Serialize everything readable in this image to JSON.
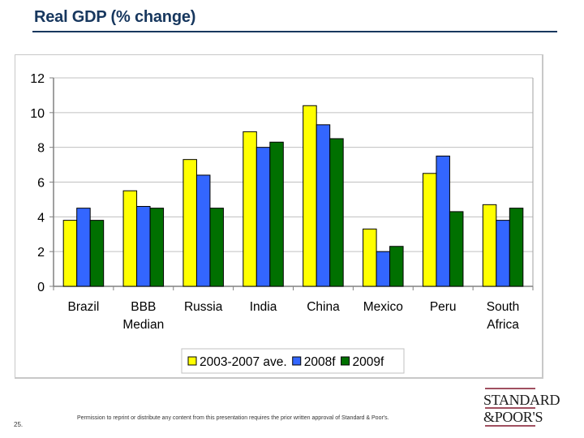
{
  "slide": {
    "title": "Real GDP (% change)",
    "page_number": "25.",
    "footer_text": "Permission to reprint or distribute any content from this presentation requires the prior written approval of Standard & Poor's.",
    "logo_line1": "STANDARD",
    "logo_line2": "&POOR'S"
  },
  "chart_data": {
    "type": "bar",
    "title": "Real GDP (% change)",
    "xlabel": "",
    "ylabel": "",
    "ylim": [
      0,
      12
    ],
    "yticks": [
      "0",
      "2",
      "4",
      "6",
      "8",
      "10",
      "12"
    ],
    "grid": true,
    "legend_position": "bottom",
    "categories": [
      [
        "Brazil"
      ],
      [
        "BBB",
        "Median"
      ],
      [
        "Russia"
      ],
      [
        "India"
      ],
      [
        "China"
      ],
      [
        "Mexico"
      ],
      [
        "Peru"
      ],
      [
        "South",
        "Africa"
      ]
    ],
    "series": [
      {
        "name": "2003-2007 ave.",
        "color": "#ffff00",
        "values": [
          3.8,
          5.5,
          7.3,
          8.9,
          10.4,
          3.3,
          6.5,
          4.7
        ]
      },
      {
        "name": "2008f",
        "color": "#3366ff",
        "values": [
          4.5,
          4.6,
          6.4,
          8.0,
          9.3,
          2.0,
          7.5,
          3.8
        ]
      },
      {
        "name": "2009f",
        "color": "#007000",
        "values": [
          3.8,
          4.5,
          4.5,
          8.3,
          8.5,
          2.3,
          4.3,
          4.5
        ]
      }
    ]
  }
}
